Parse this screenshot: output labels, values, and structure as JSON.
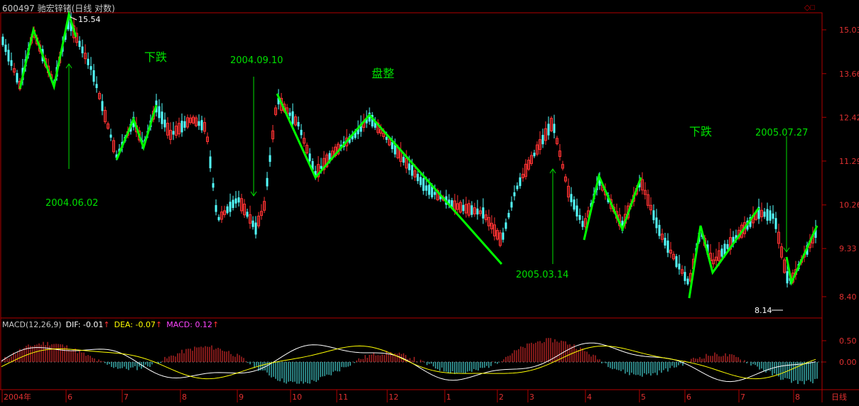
{
  "header": {
    "title": "600497 驰宏锌锗(日线 对数)"
  },
  "chart_data": {
    "type": "candlestick",
    "price_axis": {
      "scale": "log",
      "ticks": [
        "15.03",
        "13.66",
        "12.42",
        "11.29",
        "10.26",
        "9.33",
        "8.40"
      ]
    },
    "time_axis": {
      "labels": [
        "2004年",
        "6",
        "7",
        "8",
        "9",
        "10",
        "11",
        "12",
        "1",
        "2",
        "3",
        "4",
        "5",
        "6",
        "7",
        "8"
      ],
      "period": "日线"
    },
    "price_high_label": "15.54",
    "price_low_label": "8.14",
    "annotations": [
      {
        "text": "2004.06.02",
        "kind": "date"
      },
      {
        "text": "下跌",
        "kind": "trend"
      },
      {
        "text": "2004.09.10",
        "kind": "date"
      },
      {
        "text": "盘整",
        "kind": "trend"
      },
      {
        "text": "2005.03.14",
        "kind": "date"
      },
      {
        "text": "下跌",
        "kind": "trend"
      },
      {
        "text": "2005.07.27",
        "kind": "date"
      }
    ],
    "macd": {
      "legend": {
        "name": "MACD(12,26,9)",
        "dif_label": "DIF: -0.01",
        "dea_label": "DEA: -0.07",
        "macd_label": "MACD: 0.12"
      },
      "ticks": [
        "0.50",
        "0.00"
      ]
    },
    "colors": {
      "up": "#ff3232",
      "down": "#54ffff",
      "zigzag": "#00ff00",
      "annotation": "#00e000",
      "axis": "#b00000",
      "dif": "#ffffff",
      "dea": "#ffff00",
      "macd": "#ff00ff"
    }
  }
}
